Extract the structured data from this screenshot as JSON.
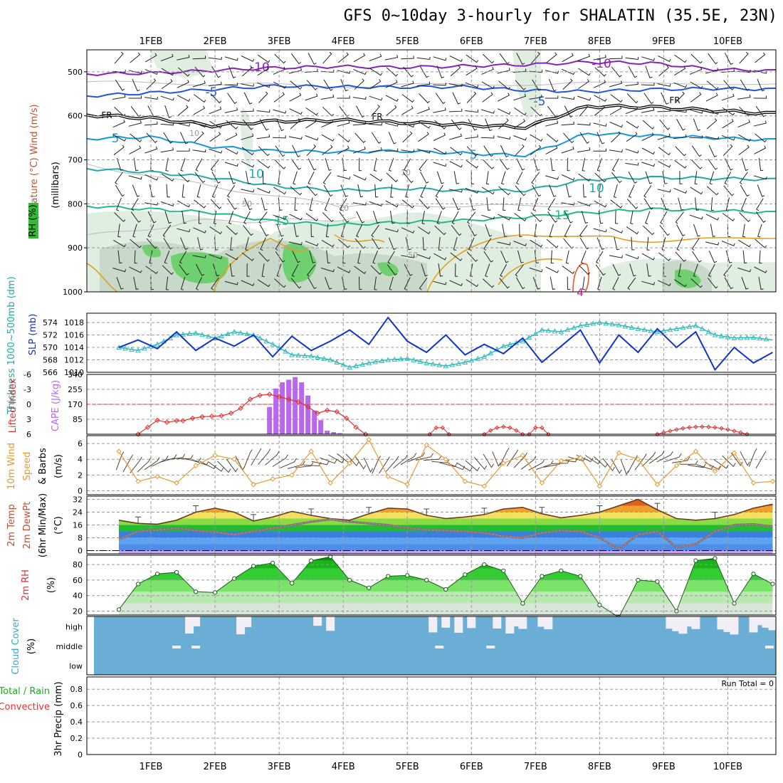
{
  "title": "GFS 0~10day 3-hourly for SHALATIN (35.5E, 23N)",
  "colors": {
    "blue_series": "#1133cc",
    "cyan_series": "#33bbbb",
    "red_series": "#dd3333",
    "cape_bar": "#bb66ee",
    "wind_orange": "#e59a30",
    "rh_green": "#33cc33",
    "cloud_blue": "#6aaed6",
    "cloud_clear": "#f2eef6"
  },
  "chart_data": [
    {
      "panel": "upper_air",
      "type": "contour",
      "title_labels": [
        "RH (%)",
        "Temperature (°C)",
        "Wind (m/s)"
      ],
      "ylabel": "(millibars)",
      "y_ticks": [
        "500",
        "600",
        "700",
        "800",
        "900",
        "1000"
      ],
      "ylim": [
        450,
        1000
      ],
      "x_dates": [
        "1FEB",
        "2FEB",
        "3FEB",
        "4FEB",
        "5FEB",
        "6FEB",
        "7FEB",
        "8FEB",
        "9FEB",
        "10FEB"
      ],
      "temperature_isotherms": [
        {
          "label": "-10",
          "pressure": [
            505,
            503,
            497,
            491,
            488,
            490,
            487,
            484,
            478,
            480,
            494,
            498
          ]
        },
        {
          "label": "-5",
          "pressure": [
            555,
            548,
            540,
            532,
            534,
            535,
            534,
            542,
            545,
            540,
            538,
            540
          ]
        },
        {
          "label": "FR",
          "pressure": [
            598,
            605,
            622,
            612,
            610,
            615,
            620,
            626,
            578,
            580,
            588,
            595
          ]
        },
        {
          "label": "5",
          "pressure": [
            652,
            648,
            670,
            680,
            682,
            680,
            685,
            690,
            640,
            645,
            650,
            655
          ]
        },
        {
          "label": "10",
          "pressure": [
            720,
            728,
            740,
            760,
            770,
            765,
            770,
            770,
            745,
            740,
            742,
            745
          ]
        },
        {
          "label": "15",
          "pressure": [
            805,
            812,
            820,
            840,
            848,
            842,
            838,
            830,
            820,
            812,
            815,
            820
          ]
        }
      ],
      "contour_labels": [
        "-10",
        "-10",
        "-5",
        "-5",
        "FR",
        "FR",
        "FR",
        "5",
        "5",
        "10",
        "10",
        "15",
        "15",
        "10",
        "10",
        "10",
        "50",
        "50",
        "4"
      ]
    },
    {
      "panel": "thickness_slp",
      "type": "line",
      "y1label": "Thickness 1000~500mb (dm)",
      "y2label": "SLP (mb)",
      "y1_ticks": [
        "566",
        "568",
        "570",
        "572",
        "574"
      ],
      "y2_ticks": [
        "1010",
        "1012",
        "1014",
        "1016",
        "1018"
      ],
      "ylim_slp": [
        1010,
        1019.5
      ],
      "ylim_thickness": [
        566,
        575.5
      ],
      "x": [
        0.0,
        0.3,
        0.6,
        0.9,
        1.2,
        1.5,
        1.8,
        2.1,
        2.4,
        2.7,
        3.0,
        3.3,
        3.6,
        3.9,
        4.2,
        4.5,
        4.8,
        5.1,
        5.4,
        5.7,
        6.0,
        6.3,
        6.6,
        6.9,
        7.2,
        7.5,
        7.8,
        8.1,
        8.4,
        8.7,
        9.0,
        9.3,
        9.6,
        9.9,
        10.2
      ],
      "series": [
        {
          "name": "SLP",
          "values": [
            1014.0,
            1015.2,
            1013.8,
            1016.5,
            1013.5,
            1015.5,
            1014.2,
            1016.0,
            1012.5,
            1015.8,
            1013.5,
            1015.0,
            1016.8,
            1014.5,
            1018.8,
            1015.0,
            1013.2,
            1016.0,
            1012.8,
            1014.5,
            1013.0,
            1015.5,
            1011.6,
            1014.2,
            1016.8,
            1011.5,
            1016.0,
            1013.2,
            1017.0,
            1014.0,
            1016.5,
            1010.4,
            1014.0,
            1011.5,
            1013.2
          ]
        },
        {
          "name": "Thickness",
          "values": [
            570.0,
            569.5,
            570.5,
            572.0,
            572.3,
            571.5,
            572.5,
            572.0,
            570.5,
            568.8,
            568.6,
            568.0,
            566.8,
            567.5,
            568.0,
            568.2,
            567.5,
            567.0,
            567.6,
            568.5,
            570.2,
            571.0,
            572.8,
            572.5,
            573.5,
            574.0,
            573.6,
            573.0,
            572.5,
            573.0,
            573.5,
            572.0,
            571.5,
            571.6,
            571.2
          ]
        }
      ]
    },
    {
      "panel": "stability",
      "type": "bar+line",
      "y1label": "Lifted Index",
      "y2label": "CAPE (J/kg)",
      "li_ticks": [
        "-6",
        "-3",
        "0",
        "3",
        "6"
      ],
      "cape_ticks": [
        "85",
        "170",
        "255",
        "340"
      ],
      "ylim_cape": [
        0,
        340
      ],
      "ylim_li": [
        -6,
        6
      ],
      "cape_x": [
        2.35,
        2.45,
        2.55,
        2.65,
        2.75,
        2.85,
        2.95,
        3.05,
        3.15,
        3.25,
        3.35,
        3.45
      ],
      "cape_values": [
        155,
        260,
        295,
        310,
        325,
        295,
        220,
        135,
        80,
        20,
        12,
        6
      ],
      "li_x": [
        0.3,
        0.45,
        0.6,
        0.75,
        0.9,
        1.0,
        1.15,
        1.3,
        1.45,
        1.6,
        1.75,
        1.9,
        2.05,
        2.2,
        2.35,
        2.5,
        2.65,
        2.8,
        2.95,
        3.1,
        3.25,
        3.4,
        3.55,
        3.7,
        3.85
      ],
      "li_values": [
        6,
        4.6,
        3.2,
        3.6,
        3.3,
        3.3,
        2.8,
        2.5,
        2.4,
        2.3,
        1.8,
        0.8,
        -1.0,
        -1.8,
        -2.0,
        -1.5,
        -1.0,
        -0.5,
        0.5,
        1.8,
        1.2,
        1.5,
        2.8,
        4.6,
        6
      ]
    },
    {
      "panel": "wind_10m",
      "type": "line",
      "ylabel": "10m Wind Speed & Barbs (m/s)",
      "y_ticks": [
        "0",
        "2",
        "4",
        "6"
      ],
      "ylim": [
        -0.5,
        7
      ],
      "x": [
        0.0,
        0.3,
        0.6,
        0.9,
        1.2,
        1.5,
        1.8,
        2.1,
        2.4,
        2.7,
        3.0,
        3.3,
        3.6,
        3.9,
        4.2,
        4.5,
        4.8,
        5.1,
        5.4,
        5.7,
        6.0,
        6.3,
        6.6,
        6.9,
        7.2,
        7.5,
        7.8,
        8.1,
        8.4,
        8.7,
        9.0,
        9.3,
        9.6,
        9.9,
        10.2
      ],
      "values": [
        5.0,
        1.2,
        1.8,
        1.0,
        3.2,
        4.5,
        4.0,
        0.8,
        1.5,
        2.0,
        5.0,
        1.0,
        3.5,
        6.5,
        1.8,
        0.8,
        5.8,
        4.0,
        1.2,
        0.6,
        3.5,
        4.5,
        1.0,
        3.8,
        4.2,
        0.6,
        4.8,
        4.0,
        0.8,
        3.2,
        5.0,
        2.5,
        4.8,
        1.0,
        1.2
      ]
    },
    {
      "panel": "temperature_2m",
      "type": "area",
      "ylabel": "2m Temp 2m DewPt (6hr Min/Max) (°C)",
      "y_ticks": [
        "0",
        "8",
        "16",
        "24",
        "32"
      ],
      "ylim": [
        -2,
        34
      ],
      "x": [
        0.0,
        0.3,
        0.6,
        0.9,
        1.2,
        1.5,
        1.8,
        2.1,
        2.4,
        2.7,
        3.0,
        3.3,
        3.6,
        3.9,
        4.2,
        4.5,
        4.8,
        5.1,
        5.4,
        5.7,
        6.0,
        6.3,
        6.6,
        6.9,
        7.2,
        7.5,
        7.8,
        8.1,
        8.4,
        8.7,
        9.0,
        9.3,
        9.6,
        9.9,
        10.2
      ],
      "temp": [
        19,
        17,
        16.5,
        19,
        24,
        26.5,
        24,
        18.5,
        21,
        24.5,
        22,
        20,
        19,
        23,
        26.5,
        26,
        22,
        20,
        21,
        22.5,
        26,
        27,
        23,
        20.5,
        22,
        24,
        28,
        32,
        25.5,
        20,
        19,
        20,
        22.5,
        26.5,
        29
      ],
      "dewpt": [
        7,
        12,
        13,
        14,
        12.5,
        11.5,
        10,
        12,
        14,
        16,
        18,
        19.5,
        18,
        17,
        16,
        14,
        13,
        12.5,
        12,
        11,
        9,
        8,
        11,
        12.5,
        12,
        8,
        1,
        10,
        12,
        2,
        4,
        12,
        16,
        16.5,
        15
      ]
    },
    {
      "panel": "rh_2m",
      "type": "area",
      "ylabel": "2m RH (%)",
      "y_ticks": [
        "20",
        "40",
        "60",
        "80"
      ],
      "ylim": [
        15,
        92
      ],
      "x": [
        0.0,
        0.3,
        0.6,
        0.9,
        1.2,
        1.5,
        1.8,
        2.1,
        2.4,
        2.7,
        3.0,
        3.3,
        3.6,
        3.9,
        4.2,
        4.5,
        4.8,
        5.1,
        5.4,
        5.7,
        6.0,
        6.3,
        6.6,
        6.9,
        7.2,
        7.5,
        7.8,
        8.1,
        8.4,
        8.7,
        9.0,
        9.3,
        9.6,
        9.9,
        10.2
      ],
      "values": [
        22,
        55,
        68,
        70,
        45,
        44,
        62,
        78,
        82,
        56,
        85,
        90,
        60,
        50,
        65,
        66,
        60,
        48,
        67,
        80,
        72,
        30,
        65,
        72,
        65,
        28,
        12,
        60,
        58,
        20,
        85,
        88,
        30,
        68,
        55
      ]
    },
    {
      "panel": "cloud_cover",
      "type": "heatmap",
      "ylabel": "Cloud Cover (%)",
      "levels": [
        "high",
        "middle",
        "low"
      ],
      "clear_high_x": [
        1.1,
        1.2,
        1.9,
        2.0,
        3.1,
        3.3,
        4.9,
        5.1,
        5.3,
        5.5,
        5.9,
        6.1,
        6.2,
        6.3,
        6.6,
        6.7,
        8.6,
        8.7,
        8.8,
        8.9,
        9.0,
        9.4,
        9.5,
        9.6,
        9.9,
        10.0,
        10.1,
        10.2
      ],
      "clear_middle_x": [
        0.9,
        1.2,
        5.0,
        5.8,
        10.15
      ],
      "clear_low_x": []
    },
    {
      "panel": "precip",
      "type": "bar",
      "ylabel": "3hr Precip (mm)",
      "left_labels": [
        "Total / Rain",
        "Convective"
      ],
      "y_ticks": [
        "0",
        "0.2",
        "0.4",
        "0.6",
        "0.8"
      ],
      "ylim": [
        0,
        0.95
      ],
      "values": [],
      "run_total_label": "Run Total = 0"
    }
  ],
  "x_dates": [
    "1FEB",
    "2FEB",
    "3FEB",
    "4FEB",
    "5FEB",
    "6FEB",
    "7FEB",
    "8FEB",
    "9FEB",
    "10FEB"
  ]
}
